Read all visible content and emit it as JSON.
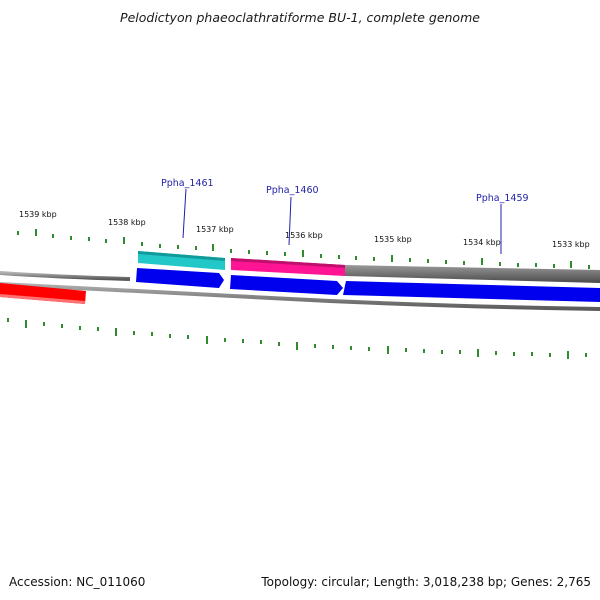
{
  "title": "Pelodictyon phaeoclathratiforme BU-1, complete genome",
  "footer": {
    "accession": "Accession: NC_011060",
    "summary": "Topology: circular; Length: 3,018,238 bp; Genes: 2,765"
  },
  "colors": {
    "backbone": "#6e6e6e",
    "forward_cds": "#0000ee",
    "reverse_gene": "#ff0000",
    "cyan_feature": "#22c8c8",
    "magenta_feature": "#ff1493",
    "gray_feature": "#6a6a6a",
    "tick": "#2e8b2e",
    "label": "#1f1fa8"
  },
  "scale": {
    "unit": "kbp",
    "ticks": [
      {
        "label": "1539 kbp"
      },
      {
        "label": "1538 kbp"
      },
      {
        "label": "1537 kbp"
      },
      {
        "label": "1536 kbp"
      },
      {
        "label": "1535 kbp"
      },
      {
        "label": "1534 kbp"
      },
      {
        "label": "1533 kbp"
      }
    ]
  },
  "gene_labels": [
    {
      "name": "Ppha_1461"
    },
    {
      "name": "Ppha_1460"
    },
    {
      "name": "Ppha_1459"
    }
  ]
}
